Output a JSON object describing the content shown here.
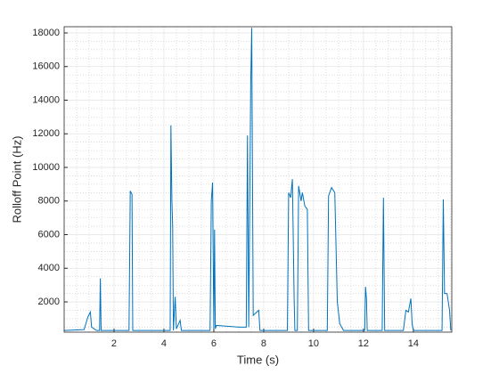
{
  "chart_data": {
    "type": "line",
    "xlabel": "Time (s)",
    "ylabel": "Rolloff Point (Hz)",
    "xlim": [
      0,
      15.54
    ],
    "ylim": [
      200,
      18370
    ],
    "xticks": [
      2,
      4,
      6,
      8,
      10,
      12,
      14
    ],
    "yticks": [
      2000,
      4000,
      6000,
      8000,
      10000,
      12000,
      14000,
      16000,
      18000
    ],
    "xminorticks": [
      0.5,
      1,
      1.5,
      2.5,
      3,
      3.5,
      4.5,
      5,
      5.5,
      6.5,
      7,
      7.5,
      8.5,
      9,
      9.5,
      10.5,
      11,
      11.5,
      12.5,
      13,
      13.5,
      14.5,
      15,
      15.5
    ],
    "yminorticks": [
      500,
      1000,
      1500,
      2500,
      3000,
      3500,
      4500,
      5000,
      5500,
      6500,
      7000,
      7500,
      8500,
      9000,
      9500,
      10500,
      11000,
      11500,
      12500,
      13000,
      13500,
      14500,
      15000,
      15500,
      16500,
      17000,
      17500
    ],
    "grid": true,
    "minor_grid": true,
    "color": "#0072bd",
    "x": [
      0.0,
      0.8,
      0.95,
      1.05,
      1.1,
      1.3,
      1.42,
      1.45,
      1.48,
      2.6,
      2.65,
      2.72,
      2.75,
      4.25,
      4.28,
      4.32,
      4.35,
      4.38,
      4.45,
      4.5,
      4.65,
      4.7,
      5.85,
      5.9,
      5.95,
      6.0,
      6.03,
      6.06,
      6.1,
      7.0,
      7.3,
      7.35,
      7.4,
      7.48,
      7.52,
      7.58,
      7.8,
      7.85,
      8.95,
      9.0,
      9.08,
      9.15,
      9.22,
      9.25,
      9.35,
      9.4,
      9.5,
      9.55,
      9.65,
      9.75,
      9.8,
      10.55,
      10.6,
      10.72,
      10.85,
      10.95,
      11.05,
      11.2,
      12.05,
      12.08,
      12.12,
      12.15,
      12.75,
      12.8,
      12.85,
      13.6,
      13.7,
      13.8,
      13.9,
      13.95,
      14.0,
      15.15,
      15.2,
      15.25,
      15.35,
      15.45,
      15.5
    ],
    "values": [
      300,
      350,
      1100,
      1400,
      500,
      300,
      300,
      3400,
      300,
      300,
      8600,
      8400,
      300,
      300,
      12500,
      8000,
      6500,
      300,
      2300,
      400,
      900,
      300,
      300,
      8000,
      9100,
      400,
      6300,
      400,
      600,
      500,
      500,
      11900,
      500,
      15000,
      18300,
      1200,
      1500,
      300,
      300,
      8500,
      8200,
      9300,
      2200,
      300,
      300,
      8900,
      8000,
      8500,
      7700,
      7500,
      300,
      300,
      8300,
      8800,
      8500,
      2000,
      700,
      300,
      300,
      2900,
      2200,
      300,
      300,
      8200,
      300,
      300,
      1500,
      1400,
      2200,
      700,
      300,
      300,
      8100,
      2500,
      2500,
      1500,
      300
    ]
  }
}
